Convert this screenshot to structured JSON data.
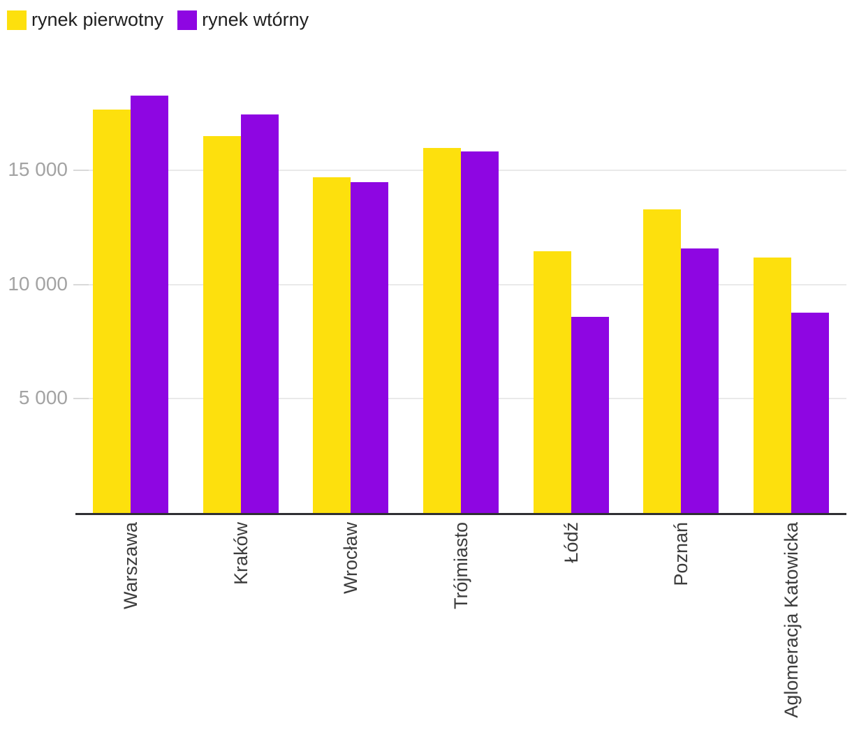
{
  "legend": {
    "items": [
      {
        "label": "rynek pierwotny",
        "color": "#FDE00D"
      },
      {
        "label": "rynek wtórny",
        "color": "#8E06E2"
      }
    ]
  },
  "chart_data": {
    "type": "bar",
    "title": "",
    "xlabel": "",
    "ylabel": "",
    "categories": [
      "Warszawa",
      "Kraków",
      "Wrocław",
      "Trójmiasto",
      "Łódź",
      "Poznań",
      "Aglomeracja Katowicka"
    ],
    "series": [
      {
        "name": "rynek pierwotny",
        "color": "#FDE00D",
        "values": [
          17670,
          16510,
          14710,
          15990,
          11470,
          13290,
          11190
        ]
      },
      {
        "name": "rynek wtórny",
        "color": "#8E06E2",
        "values": [
          18280,
          17460,
          14490,
          15830,
          8590,
          11600,
          8780
        ]
      }
    ],
    "yticks": [
      {
        "value": 5000,
        "label": "5 000"
      },
      {
        "value": 10000,
        "label": "10 000"
      },
      {
        "value": 15000,
        "label": "15 000"
      }
    ],
    "ylim": [
      0,
      18600
    ],
    "grid": "horizontal",
    "legend_position": "top-left",
    "colors": {
      "gridline": "#e9e9e9",
      "tick_dash": "#d9d9d9",
      "axis_line": "#2f2f33",
      "ytick_text": "#a3a3a3",
      "xtick_text": "#3c3c3c"
    }
  }
}
